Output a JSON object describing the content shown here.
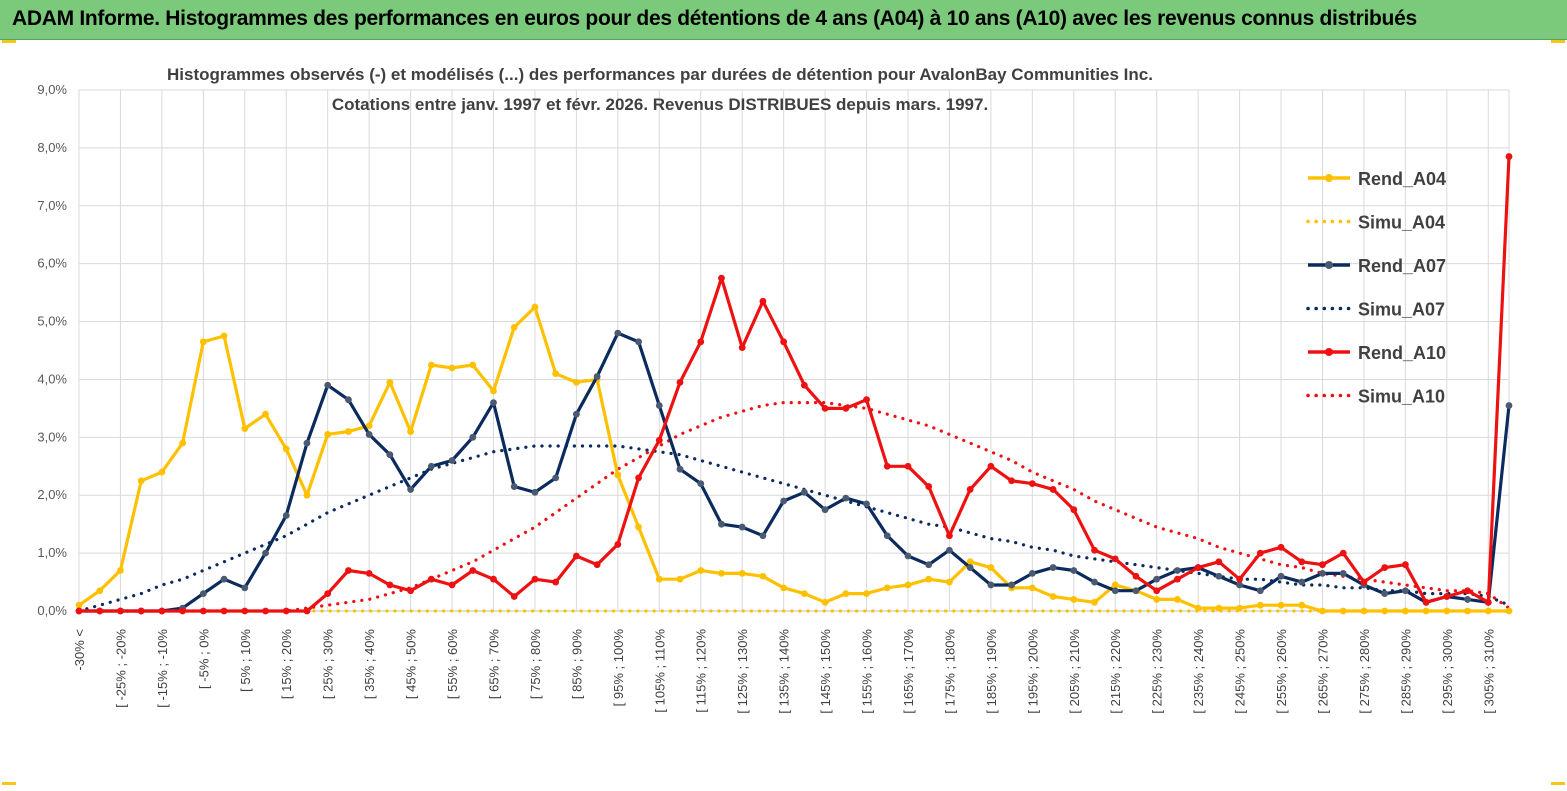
{
  "banner": {
    "title": "ADAM Informe. Histogrammes des performances en euros pour des détentions de 4 ans (A04) à 10 ans (A10) avec les revenus connus distribués"
  },
  "colors": {
    "banner_bg": "#7bc97b",
    "a04": "#ffc000",
    "a07": "#0b2a5e",
    "a10": "#ee1111",
    "grid": "#d9d9d9",
    "marker_a07": "#4a5a70"
  },
  "chart_data": {
    "type": "line",
    "title": "Histogrammes observés (-) et modélisés (...) des performances par durées de détention pour AvalonBay Communities Inc.",
    "subtitle": "Cotations entre janv. 1997 et févr. 2026. Revenus DISTRIBUES depuis mars. 1997.",
    "xlabel": "",
    "ylabel": "",
    "ylim": [
      0,
      9
    ],
    "y_unit": "%",
    "y_ticks": [
      "0,0%",
      "1,0%",
      "2,0%",
      "3,0%",
      "4,0%",
      "5,0%",
      "6,0%",
      "7,0%",
      "8,0%",
      "9,0%"
    ],
    "grid": true,
    "legend_position": "right",
    "x_tick_labels": [
      "-30% <",
      "[ -25% ; -20%",
      "[ -15% ; -10%",
      "[ -5% ; 0%",
      "[ 5% ; 10%",
      "[ 15% ; 20%",
      "[ 25% ; 30%",
      "[ 35% ; 40%",
      "[ 45% ; 50%",
      "[ 55% ; 60%",
      "[ 65% ; 70%",
      "[ 75% ; 80%",
      "[ 85% ; 90%",
      "[ 95% ; 100%",
      "[ 105% ; 110%",
      "[ 115% ; 120%",
      "[ 125% ; 130%",
      "[ 135% ; 140%",
      "[ 145% ; 150%",
      "[ 155% ; 160%",
      "[ 165% ; 170%",
      "[ 175% ; 180%",
      "[ 185% ; 190%",
      "[ 195% ; 200%",
      "[ 205% ; 210%",
      "[ 215% ; 220%",
      "[ 225% ; 230%",
      "[ 235% ; 240%",
      "[ 245% ; 250%",
      "[ 255% ; 260%",
      "[ 265% ; 270%",
      "[ 275% ; 280%",
      "[ 285% ; 290%",
      "[ 295% ; 300%",
      "[ 305% ; 310%"
    ],
    "n_points": 70,
    "series": [
      {
        "name": "Rend_A04",
        "style": "solid",
        "color": "#ffc000",
        "values": [
          0.1,
          0.35,
          0.7,
          2.25,
          2.4,
          2.9,
          4.65,
          4.75,
          3.15,
          3.4,
          2.8,
          2.0,
          3.05,
          3.1,
          3.2,
          3.95,
          3.1,
          4.25,
          4.2,
          4.25,
          3.8,
          4.9,
          5.25,
          4.1,
          3.95,
          4.0,
          2.35,
          1.45,
          0.55,
          0.55,
          0.7,
          0.65,
          0.65,
          0.6,
          0.4,
          0.3,
          0.15,
          0.3,
          0.3,
          0.4,
          0.45,
          0.55,
          0.5,
          0.85,
          0.75,
          0.4,
          0.4,
          0.25,
          0.2,
          0.15,
          0.45,
          0.35,
          0.2,
          0.2,
          0.05,
          0.05,
          0.05,
          0.1,
          0.1,
          0.1,
          0.0,
          0.0,
          0.0,
          0.0,
          0.0,
          0.0,
          0.0,
          0.0,
          0.0,
          0.0
        ]
      },
      {
        "name": "Simu_A04",
        "style": "dotted",
        "color": "#ffc000",
        "values": [
          0.0,
          0.0,
          0.0,
          0.0,
          0.0,
          0.0,
          0.0,
          0.0,
          0.0,
          0.0,
          0.0,
          0.0,
          0.0,
          0.0,
          0.0,
          0.0,
          0.0,
          0.0,
          0.0,
          0.0,
          0.0,
          0.0,
          0.0,
          0.0,
          0.0,
          0.0,
          0.0,
          0.0,
          0.0,
          0.0,
          0.0,
          0.0,
          0.0,
          0.0,
          0.0,
          0.0,
          0.0,
          0.0,
          0.0,
          0.0,
          0.0,
          0.0,
          0.0,
          0.0,
          0.0,
          0.0,
          0.0,
          0.0,
          0.0,
          0.0,
          0.0,
          0.0,
          0.0,
          0.0,
          0.0,
          0.0,
          0.0,
          0.0,
          0.0,
          0.0,
          0.0,
          0.0,
          0.0,
          0.0,
          0.0,
          0.0,
          0.0,
          0.0,
          0.0,
          0.0
        ]
      },
      {
        "name": "Rend_A07",
        "style": "solid",
        "color": "#0b2a5e",
        "values": [
          0.0,
          0.0,
          0.0,
          0.0,
          0.0,
          0.05,
          0.3,
          0.55,
          0.4,
          1.0,
          1.65,
          2.9,
          3.9,
          3.65,
          3.05,
          2.7,
          2.1,
          2.5,
          2.6,
          3.0,
          3.6,
          2.15,
          2.05,
          2.3,
          3.4,
          4.05,
          4.8,
          4.65,
          3.55,
          2.45,
          2.2,
          1.5,
          1.45,
          1.3,
          1.9,
          2.05,
          1.75,
          1.95,
          1.85,
          1.3,
          0.95,
          0.8,
          1.05,
          0.75,
          0.45,
          0.45,
          0.65,
          0.75,
          0.7,
          0.5,
          0.35,
          0.35,
          0.55,
          0.7,
          0.75,
          0.6,
          0.45,
          0.35,
          0.6,
          0.5,
          0.65,
          0.65,
          0.45,
          0.3,
          0.35,
          0.15,
          0.25,
          0.2,
          0.15,
          3.55
        ]
      },
      {
        "name": "Simu_A07",
        "style": "dotted",
        "color": "#0b2a5e",
        "values": [
          0.0,
          0.1,
          0.2,
          0.3,
          0.45,
          0.55,
          0.7,
          0.85,
          1.0,
          1.15,
          1.3,
          1.5,
          1.7,
          1.85,
          2.0,
          2.15,
          2.3,
          2.45,
          2.55,
          2.65,
          2.75,
          2.8,
          2.85,
          2.85,
          2.85,
          2.85,
          2.85,
          2.8,
          2.75,
          2.7,
          2.6,
          2.5,
          2.4,
          2.3,
          2.2,
          2.1,
          2.0,
          1.9,
          1.8,
          1.7,
          1.6,
          1.5,
          1.45,
          1.35,
          1.25,
          1.2,
          1.1,
          1.05,
          0.95,
          0.9,
          0.85,
          0.8,
          0.75,
          0.7,
          0.65,
          0.6,
          0.55,
          0.55,
          0.5,
          0.45,
          0.45,
          0.4,
          0.4,
          0.35,
          0.35,
          0.3,
          0.3,
          0.3,
          0.25,
          0.1
        ]
      },
      {
        "name": "Rend_A10",
        "style": "solid",
        "color": "#ee1111",
        "values": [
          0.0,
          0.0,
          0.0,
          0.0,
          0.0,
          0.0,
          0.0,
          0.0,
          0.0,
          0.0,
          0.0,
          0.0,
          0.3,
          0.7,
          0.65,
          0.45,
          0.35,
          0.55,
          0.45,
          0.7,
          0.55,
          0.25,
          0.55,
          0.5,
          0.95,
          0.8,
          1.15,
          2.3,
          2.95,
          3.95,
          4.65,
          5.75,
          4.55,
          5.35,
          4.65,
          3.9,
          3.5,
          3.5,
          3.65,
          2.5,
          2.5,
          2.15,
          1.3,
          2.1,
          2.5,
          2.25,
          2.2,
          2.1,
          1.75,
          1.05,
          0.9,
          0.6,
          0.35,
          0.55,
          0.75,
          0.85,
          0.55,
          1.0,
          1.1,
          0.85,
          0.8,
          1.0,
          0.5,
          0.75,
          0.8,
          0.15,
          0.25,
          0.35,
          0.15,
          7.85
        ]
      },
      {
        "name": "Simu_A10",
        "style": "dotted",
        "color": "#ee1111",
        "values": [
          0.0,
          0.0,
          0.0,
          0.0,
          0.0,
          0.0,
          0.0,
          0.0,
          0.0,
          0.0,
          0.0,
          0.05,
          0.1,
          0.15,
          0.2,
          0.3,
          0.4,
          0.55,
          0.7,
          0.85,
          1.05,
          1.25,
          1.45,
          1.7,
          1.95,
          2.2,
          2.45,
          2.65,
          2.85,
          3.05,
          3.2,
          3.35,
          3.45,
          3.55,
          3.6,
          3.6,
          3.6,
          3.55,
          3.5,
          3.4,
          3.3,
          3.2,
          3.05,
          2.9,
          2.75,
          2.6,
          2.4,
          2.25,
          2.1,
          1.9,
          1.75,
          1.6,
          1.45,
          1.35,
          1.25,
          1.1,
          1.0,
          0.9,
          0.8,
          0.75,
          0.65,
          0.6,
          0.55,
          0.5,
          0.45,
          0.4,
          0.35,
          0.35,
          0.3,
          0.05
        ]
      }
    ]
  }
}
